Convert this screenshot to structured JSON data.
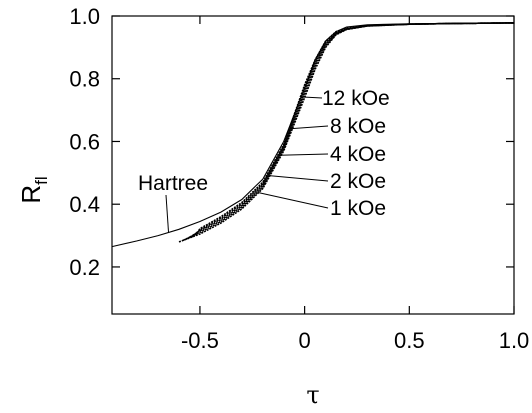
{
  "chart_data": {
    "type": "line",
    "xlabel": "τ",
    "ylabel_main": "R",
    "ylabel_sub": "fl",
    "xlim": [
      -0.92,
      1.0
    ],
    "ylim": [
      0.05,
      1.0
    ],
    "x_ticks": [
      -0.5,
      0,
      0.5,
      1.0
    ],
    "x_tick_labels": [
      "-0.5",
      "0",
      "0.5",
      "1.0"
    ],
    "y_ticks": [
      0.2,
      0.4,
      0.6,
      0.8,
      1.0
    ],
    "y_tick_labels": [
      "0.2",
      "0.4",
      "0.6",
      "0.8",
      "1.0"
    ],
    "grid": false,
    "legend": "none",
    "series": [
      {
        "name": "Hartree",
        "x": [
          -0.92,
          -0.8,
          -0.7,
          -0.6,
          -0.5,
          -0.4,
          -0.3,
          -0.2,
          -0.1,
          0.0,
          0.05,
          0.1,
          0.15,
          0.2,
          0.3,
          0.5,
          0.7,
          1.0
        ],
        "y": [
          0.265,
          0.283,
          0.3,
          0.32,
          0.345,
          0.375,
          0.415,
          0.48,
          0.6,
          0.77,
          0.86,
          0.92,
          0.95,
          0.965,
          0.972,
          0.975,
          0.976,
          0.978
        ]
      },
      {
        "name": "1 kOe",
        "x": [
          -0.6,
          -0.5,
          -0.4,
          -0.3,
          -0.2,
          -0.1,
          0.0,
          0.05,
          0.1,
          0.15,
          0.2,
          0.3,
          0.5,
          0.7,
          1.0
        ],
        "y": [
          0.28,
          0.305,
          0.34,
          0.385,
          0.45,
          0.57,
          0.74,
          0.83,
          0.9,
          0.94,
          0.957,
          0.968,
          0.974,
          0.976,
          0.978
        ]
      },
      {
        "name": "2 kOe",
        "x": [
          -0.58,
          -0.5,
          -0.4,
          -0.3,
          -0.2,
          -0.1,
          0.0,
          0.05,
          0.1,
          0.15,
          0.2,
          0.3,
          0.5,
          0.7,
          1.0
        ],
        "y": [
          0.285,
          0.31,
          0.345,
          0.39,
          0.455,
          0.575,
          0.75,
          0.84,
          0.905,
          0.942,
          0.958,
          0.968,
          0.974,
          0.976,
          0.978
        ]
      },
      {
        "name": "4 kOe",
        "x": [
          -0.56,
          -0.5,
          -0.4,
          -0.3,
          -0.2,
          -0.1,
          0.0,
          0.05,
          0.1,
          0.15,
          0.2,
          0.3,
          0.5,
          0.7,
          1.0
        ],
        "y": [
          0.29,
          0.315,
          0.35,
          0.395,
          0.46,
          0.58,
          0.76,
          0.848,
          0.91,
          0.944,
          0.959,
          0.969,
          0.974,
          0.976,
          0.978
        ]
      },
      {
        "name": "8 kOe",
        "x": [
          -0.54,
          -0.5,
          -0.4,
          -0.3,
          -0.2,
          -0.1,
          0.0,
          0.05,
          0.1,
          0.15,
          0.2,
          0.3,
          0.5,
          0.7,
          1.0
        ],
        "y": [
          0.295,
          0.318,
          0.355,
          0.4,
          0.465,
          0.585,
          0.77,
          0.855,
          0.915,
          0.947,
          0.96,
          0.969,
          0.974,
          0.976,
          0.978
        ]
      },
      {
        "name": "12 kOe",
        "x": [
          -0.52,
          -0.5,
          -0.4,
          -0.3,
          -0.2,
          -0.1,
          0.0,
          0.05,
          0.1,
          0.15,
          0.2,
          0.3,
          0.5,
          0.7,
          1.0
        ],
        "y": [
          0.3,
          0.322,
          0.36,
          0.405,
          0.47,
          0.59,
          0.78,
          0.86,
          0.92,
          0.95,
          0.962,
          0.97,
          0.974,
          0.976,
          0.978
        ]
      }
    ],
    "annotations": [
      {
        "text": "Hartree",
        "series": "Hartree"
      },
      {
        "text": "12 kOe",
        "series": "12 kOe"
      },
      {
        "text": "8 kOe",
        "series": "8 kOe"
      },
      {
        "text": "4 kOe",
        "series": "4 kOe"
      },
      {
        "text": "2 kOe",
        "series": "2 kOe"
      },
      {
        "text": "1 kOe",
        "series": "1 kOe"
      }
    ]
  }
}
